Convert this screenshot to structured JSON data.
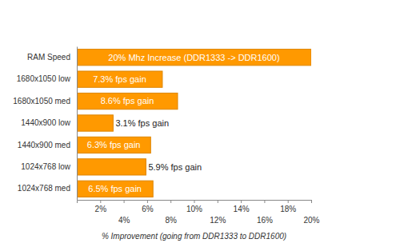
{
  "chart_data": {
    "type": "bar",
    "orientation": "horizontal",
    "categories": [
      "RAM Speed",
      "1680x1050 low",
      "1680x1050 med",
      "1440x900 low",
      "1440x900 med",
      "1024x768 low",
      "1024x768 med"
    ],
    "values": [
      20,
      7.3,
      8.6,
      3.1,
      6.3,
      5.9,
      6.5
    ],
    "value_labels": [
      "20% Mhz Increase (DDR1333 -> DDR1600)",
      "7.3% fps gain",
      "8.6% fps gain",
      "3.1% fps gain",
      "6.3% fps gain",
      "5.9% fps gain",
      "6.5% fps gain"
    ],
    "data_labels": true,
    "color": "#ff9900",
    "xlabel": "% Improvement (going from DDR1333 to DDR1600)",
    "xlim": [
      0,
      20
    ],
    "xticks": [
      {
        "value": 2,
        "label": "2%"
      },
      {
        "value": 4,
        "label": "4%"
      },
      {
        "value": 6,
        "label": "6%"
      },
      {
        "value": 8,
        "label": "8%"
      },
      {
        "value": 10,
        "label": "10%"
      },
      {
        "value": 12,
        "label": "12%"
      },
      {
        "value": 14,
        "label": "14%"
      },
      {
        "value": 16,
        "label": "16%"
      },
      {
        "value": 18,
        "label": "18%"
      },
      {
        "value": 20,
        "label": "20%"
      }
    ],
    "grid": false
  }
}
